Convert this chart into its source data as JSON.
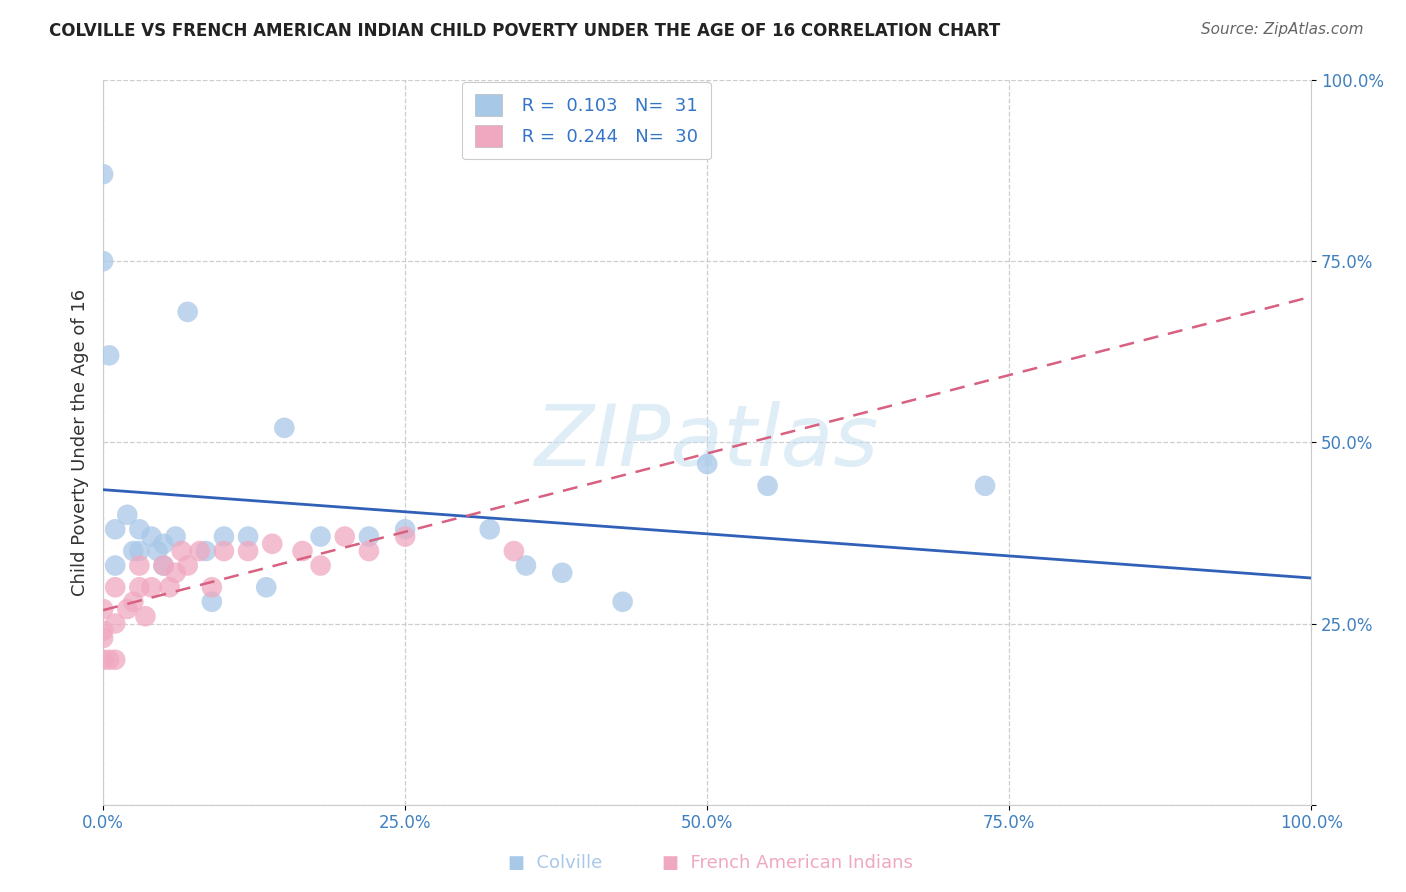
{
  "title": "COLVILLE VS FRENCH AMERICAN INDIAN CHILD POVERTY UNDER THE AGE OF 16 CORRELATION CHART",
  "source": "Source: ZipAtlas.com",
  "ylabel": "Child Poverty Under the Age of 16",
  "xlim": [
    0.0,
    1.0
  ],
  "ylim": [
    0.0,
    1.0
  ],
  "xticks": [
    0.0,
    0.25,
    0.5,
    0.75,
    1.0
  ],
  "yticks": [
    0.0,
    0.25,
    0.5,
    0.75,
    1.0
  ],
  "xticklabels": [
    "0.0%",
    "25.0%",
    "50.0%",
    "75.0%",
    "100.0%"
  ],
  "yticklabels_right": [
    "",
    "25.0%",
    "50.0%",
    "75.0%",
    "100.0%"
  ],
  "colville_R": "0.103",
  "colville_N": "31",
  "french_R": "0.244",
  "french_N": "30",
  "colville_scatter_color": "#a8c8e8",
  "french_scatter_color": "#f0a8c0",
  "colville_line_color": "#3060b8",
  "french_line_color": "#d86080",
  "legend_color": "#3575c8",
  "background_color": "#ffffff",
  "grid_color": "#c8c8d0",
  "title_color": "#222222",
  "source_color": "#666666",
  "tick_color": "#4080c0",
  "colville_x": [
    0.0,
    0.0,
    0.005,
    0.01,
    0.01,
    0.02,
    0.025,
    0.03,
    0.03,
    0.04,
    0.045,
    0.05,
    0.05,
    0.06,
    0.07,
    0.085,
    0.09,
    0.1,
    0.12,
    0.135,
    0.15,
    0.18,
    0.22,
    0.25,
    0.32,
    0.35,
    0.38,
    0.43,
    0.5,
    0.55,
    0.73
  ],
  "colville_y": [
    0.87,
    0.75,
    0.62,
    0.33,
    0.38,
    0.4,
    0.35,
    0.38,
    0.35,
    0.37,
    0.35,
    0.36,
    0.33,
    0.37,
    0.68,
    0.35,
    0.28,
    0.37,
    0.37,
    0.3,
    0.52,
    0.37,
    0.37,
    0.38,
    0.38,
    0.33,
    0.32,
    0.28,
    0.47,
    0.44,
    0.44
  ],
  "french_x": [
    0.0,
    0.0,
    0.0,
    0.0,
    0.005,
    0.01,
    0.01,
    0.01,
    0.02,
    0.025,
    0.03,
    0.03,
    0.035,
    0.04,
    0.05,
    0.055,
    0.06,
    0.065,
    0.07,
    0.08,
    0.09,
    0.1,
    0.12,
    0.14,
    0.165,
    0.18,
    0.2,
    0.22,
    0.25,
    0.34
  ],
  "french_y": [
    0.23,
    0.27,
    0.24,
    0.2,
    0.2,
    0.2,
    0.25,
    0.3,
    0.27,
    0.28,
    0.3,
    0.33,
    0.26,
    0.3,
    0.33,
    0.3,
    0.32,
    0.35,
    0.33,
    0.35,
    0.3,
    0.35,
    0.35,
    0.36,
    0.35,
    0.33,
    0.37,
    0.35,
    0.37,
    0.35
  ],
  "watermark_text": "ZIPatlas",
  "legend_label1": " R =  0.103   N=  31",
  "legend_label2": " R =  0.244   N=  30",
  "bottom_label1": "Colville",
  "bottom_label2": "French American Indians"
}
